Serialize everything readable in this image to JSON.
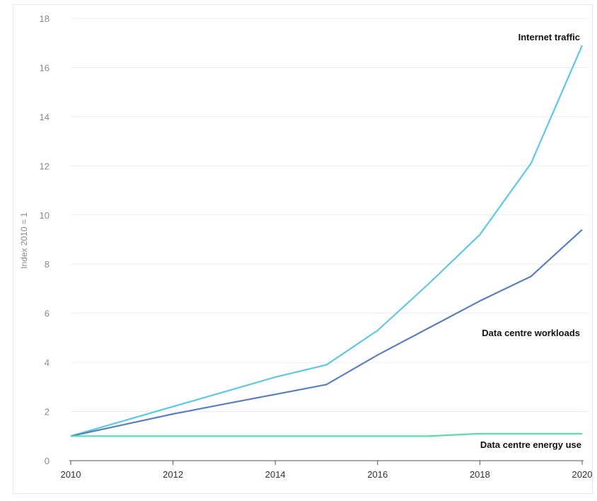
{
  "chart_data": {
    "type": "line",
    "title": "",
    "xlabel": "",
    "ylabel": "Index 2010 = 1",
    "x": [
      2010,
      2011,
      2012,
      2013,
      2014,
      2015,
      2016,
      2017,
      2018,
      2019,
      2020
    ],
    "xticks": [
      2010,
      2012,
      2014,
      2016,
      2018,
      2020
    ],
    "yticks": [
      0,
      2,
      4,
      6,
      8,
      10,
      12,
      14,
      16,
      18
    ],
    "xlim": [
      2010,
      2020
    ],
    "ylim": [
      0,
      18
    ],
    "grid": "horizontal",
    "legend": "inline labels",
    "series": [
      {
        "name": "Internet traffic",
        "color": "#5bc8e6",
        "values": [
          1.0,
          1.6,
          2.2,
          2.8,
          3.4,
          3.9,
          5.3,
          7.2,
          9.2,
          12.1,
          16.9
        ]
      },
      {
        "name": "Data centre workloads",
        "color": "#5a7fbf",
        "values": [
          1.0,
          1.45,
          1.9,
          2.3,
          2.7,
          3.1,
          4.3,
          5.4,
          6.5,
          7.5,
          9.4
        ]
      },
      {
        "name": "Data centre energy use",
        "color": "#4fe0a8",
        "values": [
          1.0,
          1.0,
          1.0,
          1.0,
          1.0,
          1.0,
          1.0,
          1.0,
          1.1,
          1.1,
          1.1
        ]
      }
    ]
  }
}
